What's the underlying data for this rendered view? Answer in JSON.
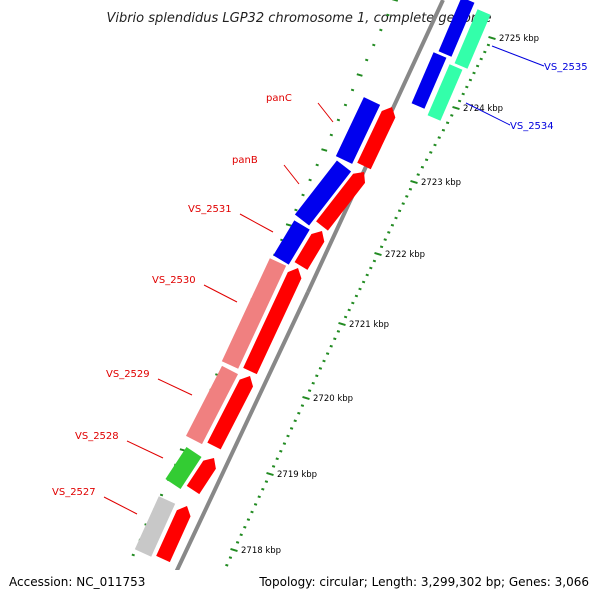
{
  "title": "Vibrio splendidus LGP32 chromosome 1, complete genome",
  "footer": {
    "accession": "Accession: NC_011753",
    "summary": "Topology: circular; Length: 3,299,302 bp; Genes: 3,066"
  },
  "colors": {
    "backbone": "#888888",
    "tick": "#228b22",
    "label_left": "#e00000",
    "label_right": "#0000dd"
  },
  "ticks": [
    {
      "label": "2718 kbp"
    },
    {
      "label": "2719 kbp"
    },
    {
      "label": "2720 kbp"
    },
    {
      "label": "2721 kbp"
    },
    {
      "label": "2722 kbp"
    },
    {
      "label": "2723 kbp"
    },
    {
      "label": "2724 kbp"
    },
    {
      "label": "2725 kbp"
    }
  ],
  "genes": [
    {
      "name": "VS_2527",
      "side": "left",
      "colors": [
        "#c8c8c8",
        "#ff0000"
      ]
    },
    {
      "name": "VS_2528",
      "side": "left",
      "colors": [
        "#33cc33",
        "#ff0000"
      ]
    },
    {
      "name": "VS_2529",
      "side": "left",
      "colors": [
        "#f08080",
        "#ff0000"
      ]
    },
    {
      "name": "VS_2530",
      "side": "left",
      "colors": [
        "#f08080",
        "#ff0000"
      ]
    },
    {
      "name": "VS_2531",
      "side": "left",
      "colors": [
        "#0000ee",
        "#ff0000"
      ]
    },
    {
      "name": "panB",
      "side": "left",
      "colors": [
        "#0000ee",
        "#ff0000"
      ]
    },
    {
      "name": "panC",
      "side": "left",
      "colors": [
        "#0000ee",
        "#ff0000"
      ]
    },
    {
      "name": "VS_2534",
      "side": "right",
      "colors": [
        "#0000ee",
        "#33ffaa"
      ]
    },
    {
      "name": "VS_2535",
      "side": "right",
      "colors": [
        "#0000ee",
        "#33ffaa"
      ]
    }
  ]
}
